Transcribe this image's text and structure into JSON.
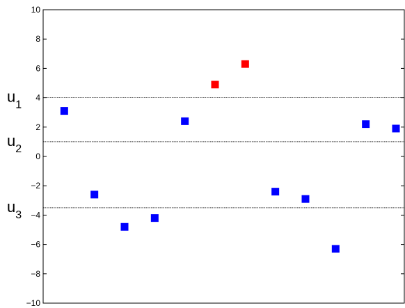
{
  "chart_data": {
    "type": "scatter",
    "title": "",
    "xlabel": "",
    "ylabel": "",
    "ylim": [
      -10,
      10
    ],
    "xlim": [
      0.3,
      12.3
    ],
    "yticks": [
      10,
      8,
      6,
      4,
      2,
      0,
      -2,
      -4,
      -6,
      -8,
      -10
    ],
    "ytick_labels": [
      "10",
      "8",
      "6",
      "4",
      "2",
      "0",
      "−2",
      "−4",
      "−6",
      "−8",
      "−10"
    ],
    "grid": false,
    "points": [
      {
        "x": 1,
        "y": 3.1,
        "color": "#0000ff"
      },
      {
        "x": 2,
        "y": -2.6,
        "color": "#0000ff"
      },
      {
        "x": 3,
        "y": -4.8,
        "color": "#0000ff"
      },
      {
        "x": 4,
        "y": -4.2,
        "color": "#0000ff"
      },
      {
        "x": 5,
        "y": 2.4,
        "color": "#0000ff"
      },
      {
        "x": 6,
        "y": 4.9,
        "color": "#ff0000"
      },
      {
        "x": 7,
        "y": 6.3,
        "color": "#ff0000"
      },
      {
        "x": 8,
        "y": -2.4,
        "color": "#0000ff"
      },
      {
        "x": 9,
        "y": -2.9,
        "color": "#0000ff"
      },
      {
        "x": 10,
        "y": -6.3,
        "color": "#0000ff"
      },
      {
        "x": 11,
        "y": 2.2,
        "color": "#0000ff"
      },
      {
        "x": 12,
        "y": 1.9,
        "color": "#0000ff"
      }
    ],
    "thresholds": [
      {
        "base": "u",
        "sub": "1",
        "y": 4
      },
      {
        "base": "u",
        "sub": "2",
        "y": 1
      },
      {
        "base": "u",
        "sub": "3",
        "y": -3.5
      }
    ]
  }
}
